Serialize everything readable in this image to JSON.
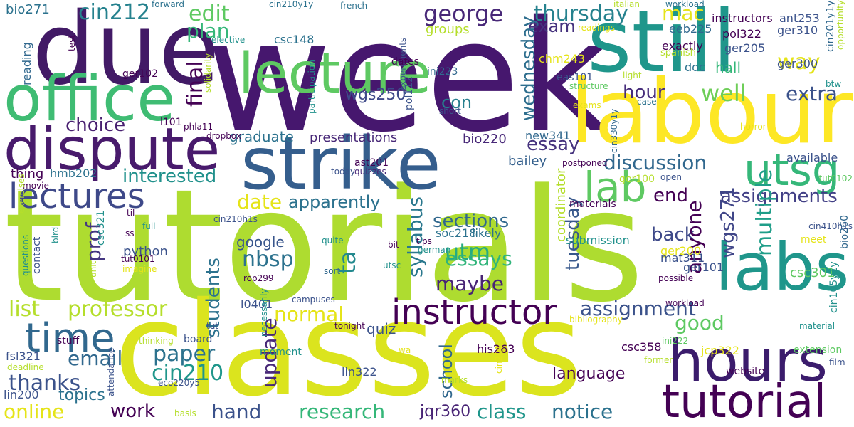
{
  "palette": {
    "p1": "#440154",
    "p2": "#3b528b",
    "p3": "#21918c",
    "p4": "#5ec962",
    "p5": "#b5de2b",
    "p6": "#fde725",
    "p7": "#2c728e",
    "p8": "#31688e"
  },
  "words": [
    {
      "text": "week",
      "color": "#46176e"
    },
    {
      "text": "tutorials",
      "color": "#aedc30"
    },
    {
      "text": "classes",
      "color": "#dbe41e"
    },
    {
      "text": "still",
      "color": "#1f968b"
    },
    {
      "text": "due",
      "color": "#421a66"
    },
    {
      "text": "labour",
      "color": "#fde725"
    },
    {
      "text": "office",
      "color": "#3fbc73"
    },
    {
      "text": "strike",
      "color": "#355e8d"
    },
    {
      "text": "dispute",
      "color": "#481a6c"
    },
    {
      "text": "lecture",
      "color": "#5ec962"
    },
    {
      "text": "hours",
      "color": "#3b1c6c"
    },
    {
      "text": "labs",
      "color": "#1f968b"
    },
    {
      "text": "tutorial",
      "color": "#440154"
    },
    {
      "text": "lectures",
      "color": "#3e4989"
    },
    {
      "text": "instructor",
      "color": "#440154"
    },
    {
      "text": "lab",
      "color": "#5ec962"
    },
    {
      "text": "time",
      "color": "#31688e"
    },
    {
      "text": "utsg",
      "color": "#35b779"
    },
    {
      "text": "discussion",
      "color": "#31688e"
    },
    {
      "text": "professor",
      "color": "#b5de2b"
    },
    {
      "text": "list",
      "color": "#b5de2b"
    },
    {
      "text": "george",
      "color": "#482878"
    },
    {
      "text": "thursday",
      "color": "#26828e"
    },
    {
      "text": "edit",
      "color": "#5ec962"
    },
    {
      "text": "cin212",
      "color": "#26828e"
    },
    {
      "text": "plan",
      "color": "#35b779"
    },
    {
      "text": "mac",
      "color": "#e5e419"
    },
    {
      "text": "final",
      "color": "#440154"
    },
    {
      "text": "exam",
      "color": "#46337e"
    },
    {
      "text": "way",
      "color": "#e5e419"
    },
    {
      "text": "hour",
      "color": "#472d7b"
    },
    {
      "text": "well",
      "color": "#6ece58"
    },
    {
      "text": "extra",
      "color": "#3b528b"
    },
    {
      "text": "choice",
      "color": "#481f70"
    },
    {
      "text": "con",
      "color": "#277f8e"
    },
    {
      "text": "wednesday",
      "color": "#2e6e8e"
    },
    {
      "text": "essay",
      "color": "#46337e"
    },
    {
      "text": "interested",
      "color": "#21918c"
    },
    {
      "text": "date",
      "color": "#e5e419"
    },
    {
      "text": "end",
      "color": "#440154"
    },
    {
      "text": "assignments",
      "color": "#424086"
    },
    {
      "text": "sections",
      "color": "#31688e"
    },
    {
      "text": "apparently",
      "color": "#2c728e"
    },
    {
      "text": "back",
      "color": "#3e4989"
    },
    {
      "text": "ta",
      "color": "#23898e"
    },
    {
      "text": "nbsp",
      "color": "#2c728e"
    },
    {
      "text": "utm",
      "color": "#25ab82"
    },
    {
      "text": "essays",
      "color": "#31b57b"
    },
    {
      "text": "maybe",
      "color": "#482475"
    },
    {
      "text": "syllabus",
      "color": "#2a788e"
    },
    {
      "text": "tuesday",
      "color": "#38588c"
    },
    {
      "text": "wgs271",
      "color": "#404688"
    },
    {
      "text": "multiple",
      "color": "#1f9e89"
    },
    {
      "text": "anyone",
      "color": "#440154"
    },
    {
      "text": "assignment",
      "color": "#3b528b"
    },
    {
      "text": "good",
      "color": "#5ec962"
    },
    {
      "text": "prof",
      "color": "#453781"
    },
    {
      "text": "students",
      "color": "#2c728e"
    },
    {
      "text": "normal",
      "color": "#e5e419"
    },
    {
      "text": "paper",
      "color": "#2c728e"
    },
    {
      "text": "update",
      "color": "#482878"
    },
    {
      "text": "email",
      "color": "#31688e"
    },
    {
      "text": "thanks",
      "color": "#3b528b"
    },
    {
      "text": "cin210",
      "color": "#1f968b"
    },
    {
      "text": "topics",
      "color": "#2c728e"
    },
    {
      "text": "online",
      "color": "#e5e419"
    },
    {
      "text": "work",
      "color": "#440154"
    },
    {
      "text": "hand",
      "color": "#3b528b"
    },
    {
      "text": "research",
      "color": "#35b779"
    },
    {
      "text": "class",
      "color": "#1f968b"
    },
    {
      "text": "notice",
      "color": "#2c728e"
    },
    {
      "text": "jqr360",
      "color": "#482475"
    },
    {
      "text": "school",
      "color": "#31688e"
    },
    {
      "text": "language",
      "color": "#440154"
    },
    {
      "text": "quiz",
      "color": "#3b528b"
    },
    {
      "text": "coordinator",
      "color": "#b5de2b"
    },
    {
      "text": "graduate",
      "color": "#2c728e"
    },
    {
      "text": "presentations",
      "color": "#482878"
    },
    {
      "text": "wgs250",
      "color": "#3e4989"
    },
    {
      "text": "google",
      "color": "#39568c"
    },
    {
      "text": "python",
      "color": "#3b528b"
    },
    {
      "text": "groups",
      "color": "#b5de2b"
    },
    {
      "text": "bio220",
      "color": "#482878"
    },
    {
      "text": "bailey",
      "color": "#35608d"
    },
    {
      "text": "hmb202",
      "color": "#2c728e"
    },
    {
      "text": "thing",
      "color": "#440154"
    },
    {
      "text": "reading",
      "color": "#31688e"
    },
    {
      "text": "bio271",
      "color": "#2c728e"
    },
    {
      "text": "csc148",
      "color": "#2c728e"
    },
    {
      "text": "chm243",
      "color": "#e5e419"
    },
    {
      "text": "ini223",
      "color": "#31688e"
    },
    {
      "text": "eeb225",
      "color": "#31688e"
    },
    {
      "text": "ant253",
      "color": "#3b528b"
    },
    {
      "text": "pol322",
      "color": "#440154"
    },
    {
      "text": "ger310",
      "color": "#3b528b"
    },
    {
      "text": "ger205",
      "color": "#3b528b"
    },
    {
      "text": "ger300",
      "color": "#3b528b"
    },
    {
      "text": "exactly",
      "color": "#440154"
    },
    {
      "text": "spanish",
      "color": "#b5de2b"
    },
    {
      "text": "doc",
      "color": "#2c728e"
    },
    {
      "text": "hall",
      "color": "#35b779"
    },
    {
      "text": "eas101",
      "color": "#3b528b"
    },
    {
      "text": "structure",
      "color": "#5ec962"
    },
    {
      "text": "light",
      "color": "#b5de2b"
    },
    {
      "text": "case",
      "color": "#2c728e"
    },
    {
      "text": "exams",
      "color": "#e5e419"
    },
    {
      "text": "horror",
      "color": "#e5e419"
    },
    {
      "text": "instructors",
      "color": "#440154"
    },
    {
      "text": "workload",
      "color": "#2c728e"
    },
    {
      "text": "italian",
      "color": "#b5de2b"
    },
    {
      "text": "readings",
      "color": "#e5e419"
    },
    {
      "text": "french",
      "color": "#2c728e"
    },
    {
      "text": "cin210y1y",
      "color": "#2c728e"
    },
    {
      "text": "forward",
      "color": "#2c728e"
    },
    {
      "text": "cin330y1y",
      "color": "#31688e"
    },
    {
      "text": "cin201y1y",
      "color": "#31688e"
    },
    {
      "text": "opportunity",
      "color": "#b5de2b"
    },
    {
      "text": "btw",
      "color": "#21918c"
    },
    {
      "text": "new341",
      "color": "#31688e"
    },
    {
      "text": "pol112",
      "color": "#3b528b"
    },
    {
      "text": "ast201",
      "color": "#440154"
    },
    {
      "text": "quizzes",
      "color": "#482878"
    },
    {
      "text": "today",
      "color": "#3b528b"
    },
    {
      "text": "postponed",
      "color": "#440154"
    },
    {
      "text": "ger100",
      "color": "#b5de2b"
    },
    {
      "text": "open",
      "color": "#3b528b"
    },
    {
      "text": "available",
      "color": "#3b528b"
    },
    {
      "text": "tut0102",
      "color": "#5ec962"
    },
    {
      "text": "cin410h1s",
      "color": "#3b528b"
    },
    {
      "text": "materials",
      "color": "#440154"
    },
    {
      "text": "likely",
      "color": "#2c728e"
    },
    {
      "text": "soc218",
      "color": "#2c728e"
    },
    {
      "text": "submission",
      "color": "#21918c"
    },
    {
      "text": "ger200",
      "color": "#e5e419"
    },
    {
      "text": "mat311",
      "color": "#3b528b"
    },
    {
      "text": "meet",
      "color": "#e5e419"
    },
    {
      "text": "csc301",
      "color": "#5ec962"
    },
    {
      "text": "ger101",
      "color": "#3b528b"
    },
    {
      "text": "possible",
      "color": "#440154"
    },
    {
      "text": "bio260",
      "color": "#31688e"
    },
    {
      "text": "l0401",
      "color": "#3b528b"
    },
    {
      "text": "rop299",
      "color": "#440154"
    },
    {
      "text": "sort",
      "color": "#31688e"
    },
    {
      "text": "campuses",
      "color": "#3b528b"
    },
    {
      "text": "tonight",
      "color": "#440154"
    },
    {
      "text": "stuff",
      "color": "#440154"
    },
    {
      "text": "thinking",
      "color": "#b5de2b"
    },
    {
      "text": "tut",
      "color": "#3b528b"
    },
    {
      "text": "board",
      "color": "#3b528b"
    },
    {
      "text": "bibliography",
      "color": "#e5e419"
    },
    {
      "text": "material",
      "color": "#21918c"
    },
    {
      "text": "workload",
      "color": "#440154"
    },
    {
      "text": "csc358",
      "color": "#440154"
    },
    {
      "text": "ini222",
      "color": "#5ec962"
    },
    {
      "text": "jcp322",
      "color": "#e5e419"
    },
    {
      "text": "website",
      "color": "#440154"
    },
    {
      "text": "extension",
      "color": "#5ec962"
    },
    {
      "text": "cin105y1y",
      "color": "#21918c"
    },
    {
      "text": "film",
      "color": "#3b528b"
    },
    {
      "text": "former",
      "color": "#b5de2b"
    },
    {
      "text": "his263",
      "color": "#440154"
    },
    {
      "text": "lin322",
      "color": "#3b528b"
    },
    {
      "text": "moment",
      "color": "#21918c"
    },
    {
      "text": "wa",
      "color": "#e5e419"
    },
    {
      "text": "marks",
      "color": "#b5de2b"
    },
    {
      "text": "cin201",
      "color": "#e5e419"
    },
    {
      "text": "fsl321",
      "color": "#3b528b"
    },
    {
      "text": "deadline",
      "color": "#b5de2b"
    },
    {
      "text": "lin200",
      "color": "#3b528b"
    },
    {
      "text": "attendance",
      "color": "#3b528b"
    },
    {
      "text": "eco220y5",
      "color": "#3b528b"
    },
    {
      "text": "basis",
      "color": "#b5de2b"
    },
    {
      "text": "necessarily",
      "color": "#21918c"
    },
    {
      "text": "cin210h1s",
      "color": "#3b528b"
    },
    {
      "text": "contact",
      "color": "#3b528b"
    },
    {
      "text": "questions",
      "color": "#21918c"
    },
    {
      "text": "unit",
      "color": "#b5de2b"
    },
    {
      "text": "tut0101",
      "color": "#440154"
    },
    {
      "text": "imagine",
      "color": "#e5e419"
    },
    {
      "text": "csc321",
      "color": "#21918c"
    },
    {
      "text": "ss",
      "color": "#440154"
    },
    {
      "text": "full",
      "color": "#21918c"
    },
    {
      "text": "til",
      "color": "#440154"
    },
    {
      "text": "bird",
      "color": "#21918c"
    },
    {
      "text": "movie",
      "color": "#440154"
    },
    {
      "text": "exercises",
      "color": "#b5de2b"
    },
    {
      "text": "tips",
      "color": "#440154"
    },
    {
      "text": "german",
      "color": "#21918c"
    },
    {
      "text": "quite",
      "color": "#21918c"
    },
    {
      "text": "utsc",
      "color": "#21918c"
    },
    {
      "text": "bit",
      "color": "#440154"
    },
    {
      "text": "l101",
      "color": "#440154"
    },
    {
      "text": "phla11",
      "color": "#440154"
    },
    {
      "text": "dropbox",
      "color": "#440154"
    },
    {
      "text": "solidarity",
      "color": "#b5de2b"
    },
    {
      "text": "elective",
      "color": "#21918c"
    },
    {
      "text": "test",
      "color": "#440154"
    },
    {
      "text": "ger102",
      "color": "#440154"
    },
    {
      "text": "participation",
      "color": "#21918c"
    },
    {
      "text": "experiments",
      "color": "#3b528b"
    },
    {
      "text": "short",
      "color": "#3b528b"
    },
    {
      "text": "dates",
      "color": "#440154"
    }
  ]
}
